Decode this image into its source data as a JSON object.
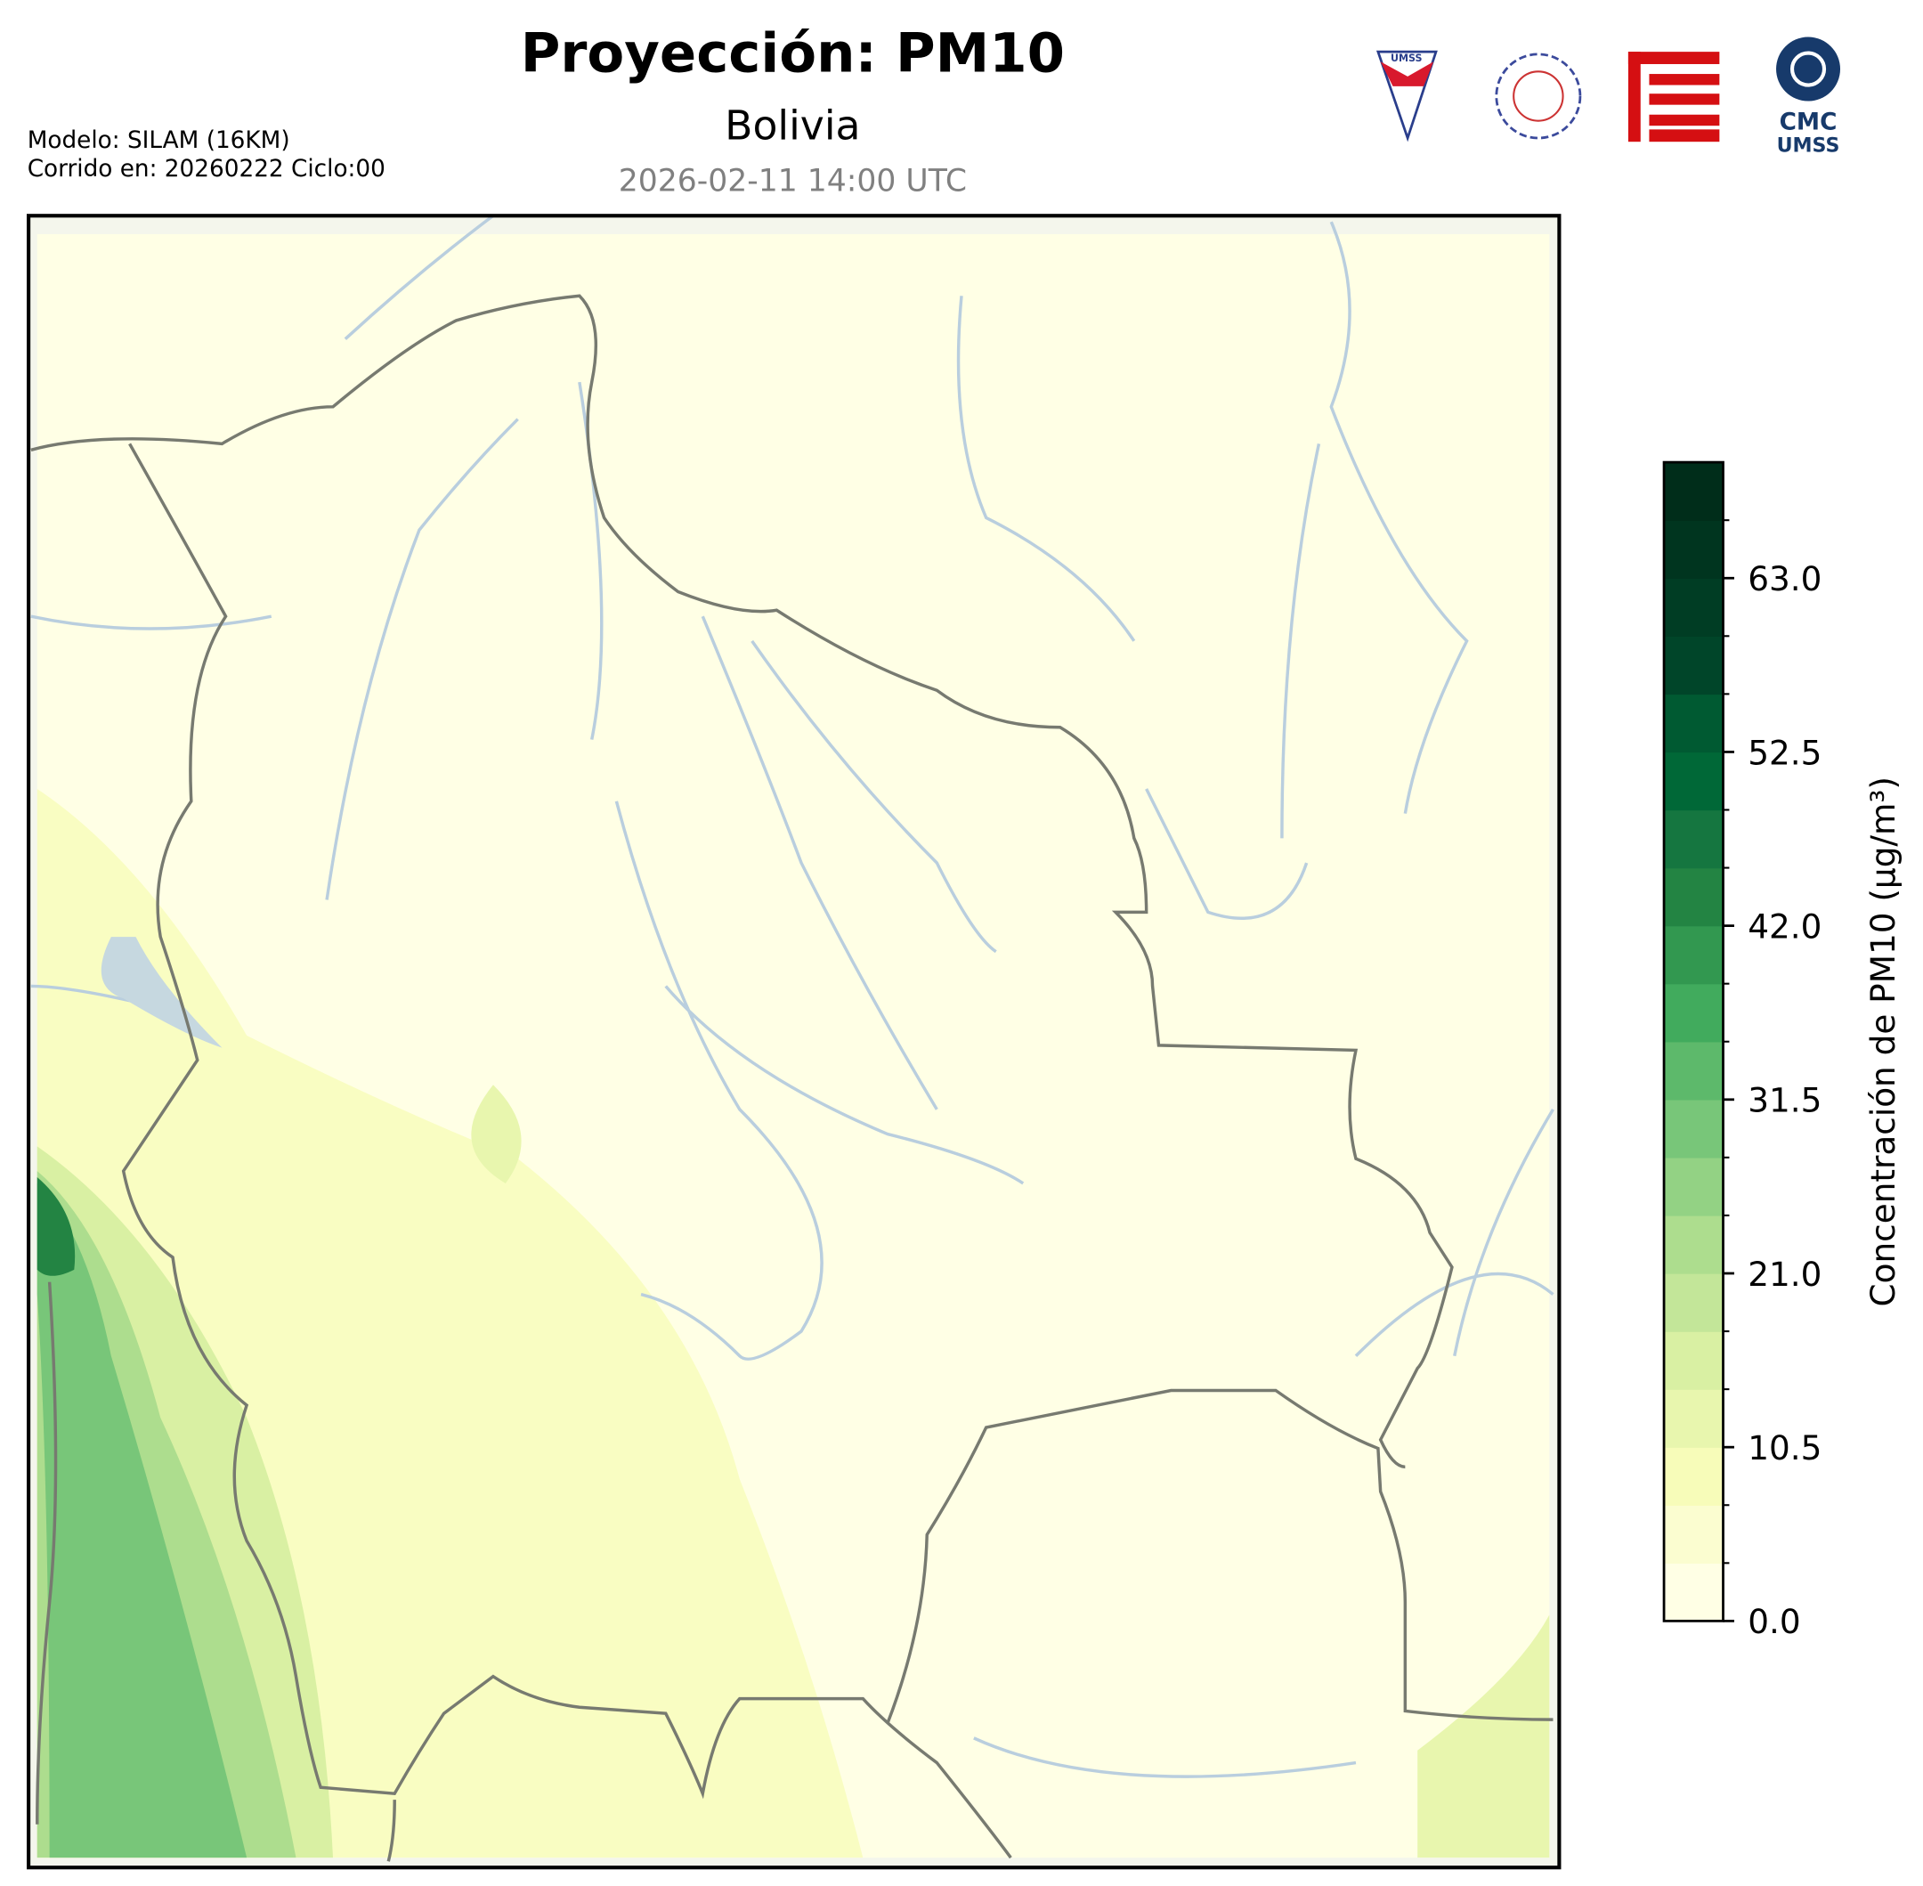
{
  "header": {
    "title": "Proyección: PM10",
    "subtitle": "Bolivia",
    "date": "2026-02-11 14:00 UTC",
    "model": "Modelo: SILAM (16KM)",
    "run": "Corrido en: 20260222 Ciclo:00"
  },
  "logos": {
    "shield": "UMSS",
    "cmc": "CMC",
    "cmc_sub": "UMSS"
  },
  "chart_data": {
    "type": "colorbar",
    "label": "Concentración de PM10 (µg/m³)",
    "lim": [
      0,
      70
    ],
    "ticks": [
      {
        "value": 0,
        "label": "0.0"
      },
      {
        "value": 10.5,
        "label": "10.5"
      },
      {
        "value": 21,
        "label": "21.0"
      },
      {
        "value": 31.5,
        "label": "31.5"
      },
      {
        "value": 42,
        "label": "42.0"
      },
      {
        "value": 52.5,
        "label": "52.5"
      },
      {
        "value": 63,
        "label": "63.0"
      }
    ],
    "colors": [
      "#ffffe5",
      "#fbfdd0",
      "#f7fcb9",
      "#e8f6ae",
      "#d9f0a3",
      "#c3e699",
      "#addd8e",
      "#93d284",
      "#78c679",
      "#5db96b",
      "#41ab5d",
      "#329850",
      "#238443",
      "#157640",
      "#006837",
      "#005a32",
      "#004529",
      "#003d24",
      "#00351f",
      "#002d1a"
    ]
  }
}
